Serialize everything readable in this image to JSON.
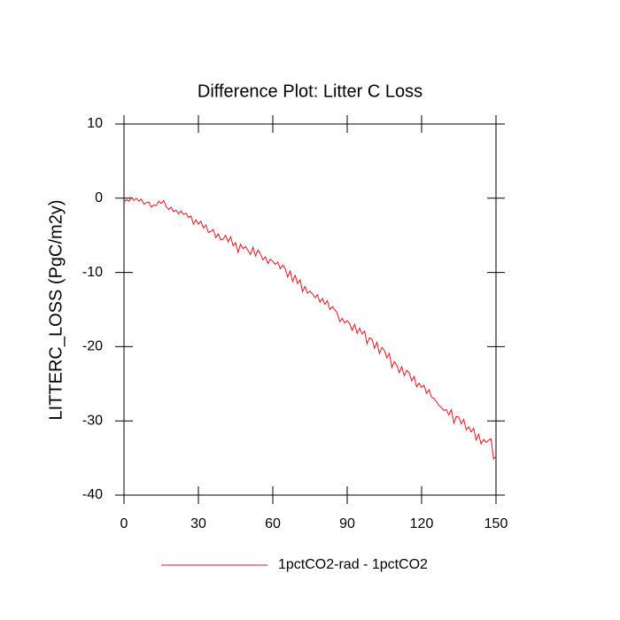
{
  "chart_data": {
    "type": "line",
    "title": "Difference Plot: Litter C Loss",
    "y_label": "LITTERC_LOSS  (PgC/m2y)",
    "x": [
      0,
      1,
      2,
      3,
      4,
      5,
      6,
      7,
      8,
      9,
      10,
      11,
      12,
      13,
      14,
      15,
      16,
      17,
      18,
      19,
      20,
      21,
      22,
      23,
      24,
      25,
      26,
      27,
      28,
      29,
      30,
      31,
      32,
      33,
      34,
      35,
      36,
      37,
      38,
      39,
      40,
      41,
      42,
      43,
      44,
      45,
      46,
      47,
      48,
      49,
      50,
      51,
      52,
      53,
      54,
      55,
      56,
      57,
      58,
      59,
      60,
      61,
      62,
      63,
      64,
      65,
      66,
      67,
      68,
      69,
      70,
      71,
      72,
      73,
      74,
      75,
      76,
      77,
      78,
      79,
      80,
      81,
      82,
      83,
      84,
      85,
      86,
      87,
      88,
      89,
      90,
      91,
      92,
      93,
      94,
      95,
      96,
      97,
      98,
      99,
      100,
      101,
      102,
      103,
      104,
      105,
      106,
      107,
      108,
      109,
      110,
      111,
      112,
      113,
      114,
      115,
      116,
      117,
      118,
      119,
      120,
      121,
      122,
      123,
      124,
      125,
      126,
      127,
      128,
      129,
      130,
      131,
      132,
      133,
      134,
      135,
      136,
      137,
      138,
      139,
      140,
      141,
      142,
      143,
      144,
      145,
      146,
      147,
      148,
      149,
      150
    ],
    "series": [
      {
        "name": "1pctCO2-rad - 1pctCO2",
        "color": "#e8141c",
        "values": [
          -0.5,
          -0.2,
          -0.4,
          0.1,
          -0.3,
          0.0,
          -0.4,
          -0.1,
          -0.8,
          -0.6,
          -0.5,
          -1.2,
          -0.9,
          -1.0,
          -0.4,
          -0.7,
          -0.3,
          -1.1,
          -1.5,
          -1.2,
          -1.8,
          -1.6,
          -2.1,
          -1.7,
          -2.2,
          -2.0,
          -2.6,
          -2.4,
          -3.5,
          -2.9,
          -3.5,
          -3.1,
          -4.0,
          -3.6,
          -4.6,
          -4.5,
          -4.2,
          -5.3,
          -4.8,
          -5.6,
          -5.5,
          -5.0,
          -5.9,
          -5.2,
          -6.4,
          -6.0,
          -7.3,
          -6.2,
          -6.8,
          -6.5,
          -7.0,
          -7.6,
          -6.6,
          -7.8,
          -7.0,
          -7.5,
          -8.3,
          -7.9,
          -8.8,
          -8.2,
          -8.5,
          -8.9,
          -8.6,
          -9.5,
          -9.0,
          -9.5,
          -10.6,
          -9.8,
          -11.2,
          -10.4,
          -11.5,
          -11.0,
          -12.6,
          -11.9,
          -12.8,
          -12.5,
          -12.9,
          -13.4,
          -13.0,
          -14.0,
          -13.5,
          -14.3,
          -13.8,
          -15.0,
          -14.6,
          -15.0,
          -15.5,
          -16.6,
          -16.2,
          -16.8,
          -16.5,
          -16.9,
          -17.8,
          -17.0,
          -18.2,
          -17.5,
          -18.3,
          -17.9,
          -19.6,
          -18.8,
          -19.0,
          -20.2,
          -19.4,
          -20.9,
          -20.1,
          -20.5,
          -21.5,
          -20.9,
          -22.8,
          -22.0,
          -22.5,
          -23.5,
          -22.7,
          -23.9,
          -23.2,
          -23.5,
          -24.6,
          -24.0,
          -25.4,
          -24.9,
          -25.5,
          -25.2,
          -26.3,
          -25.8,
          -26.8,
          -27.0,
          -27.4,
          -27.9,
          -28.2,
          -28.6,
          -28.5,
          -29.2,
          -28.5,
          -30.3,
          -29.4,
          -29.5,
          -30.4,
          -29.8,
          -31.2,
          -30.8,
          -31.5,
          -31.0,
          -32.6,
          -31.8,
          -33.1,
          -32.5,
          -32.9,
          -32.6,
          -32.4,
          -35.1,
          -34.8
        ]
      }
    ],
    "xlim": [
      0,
      150
    ],
    "xticks": [
      0,
      30,
      60,
      90,
      120,
      150
    ],
    "ylim": [
      -40,
      10
    ],
    "yticks": [
      -40,
      -30,
      -20,
      -10,
      0,
      10
    ],
    "legend": "bottom"
  }
}
